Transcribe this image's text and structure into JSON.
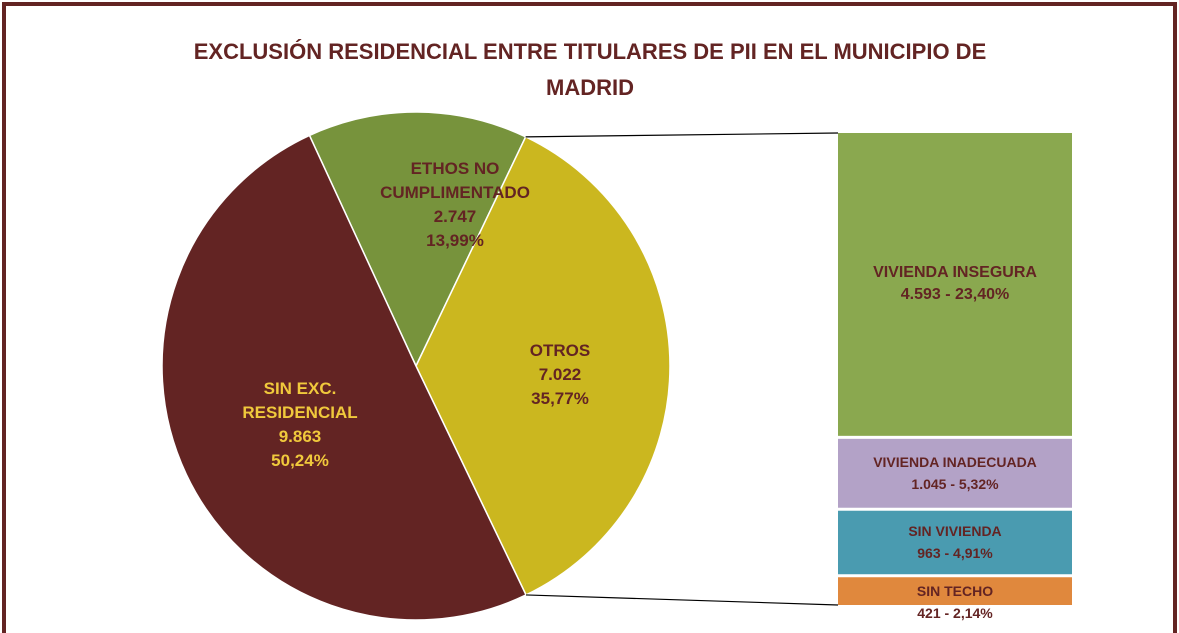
{
  "chart_data": {
    "type": "pie_of_bar",
    "title": "EXCLUSIÓN RESIDENCIAL ENTRE TITULARES DE PII EN EL MUNICIPIO DE MADRID",
    "categories": [
      "ETHOS NO CUMPLIMENTADO",
      "OTROS",
      "SIN EXC. RESIDENCIAL"
    ],
    "values": [
      2747,
      7022,
      9863
    ],
    "value_labels": [
      "2.747",
      "7.022",
      "9.863"
    ],
    "percents": [
      13.99,
      35.77,
      50.24
    ],
    "percent_labels": [
      "13,99%",
      "35,77%",
      "50,24%"
    ],
    "colors": [
      "#77933c",
      "#cbb71f",
      "#632423"
    ],
    "label_colors": [
      "#632423",
      "#632423",
      "#f0c93c"
    ],
    "breakdown": {
      "categories": [
        "VIVIENDA INSEGURA",
        "VIVIENDA INADECUADA",
        "SIN VIVIENDA",
        "SIN TECHO"
      ],
      "values": [
        4593,
        1045,
        963,
        421
      ],
      "percents": [
        23.4,
        5.32,
        4.91,
        2.14
      ],
      "value_labels": [
        "4.593 - 23,40%",
        "1.045 - 5,32%",
        "963 - 4,91%",
        "421 - 2,14%"
      ],
      "colors": [
        "#8aa84f",
        "#b3a2c7",
        "#4a9bb0",
        "#e0883d"
      ]
    }
  }
}
